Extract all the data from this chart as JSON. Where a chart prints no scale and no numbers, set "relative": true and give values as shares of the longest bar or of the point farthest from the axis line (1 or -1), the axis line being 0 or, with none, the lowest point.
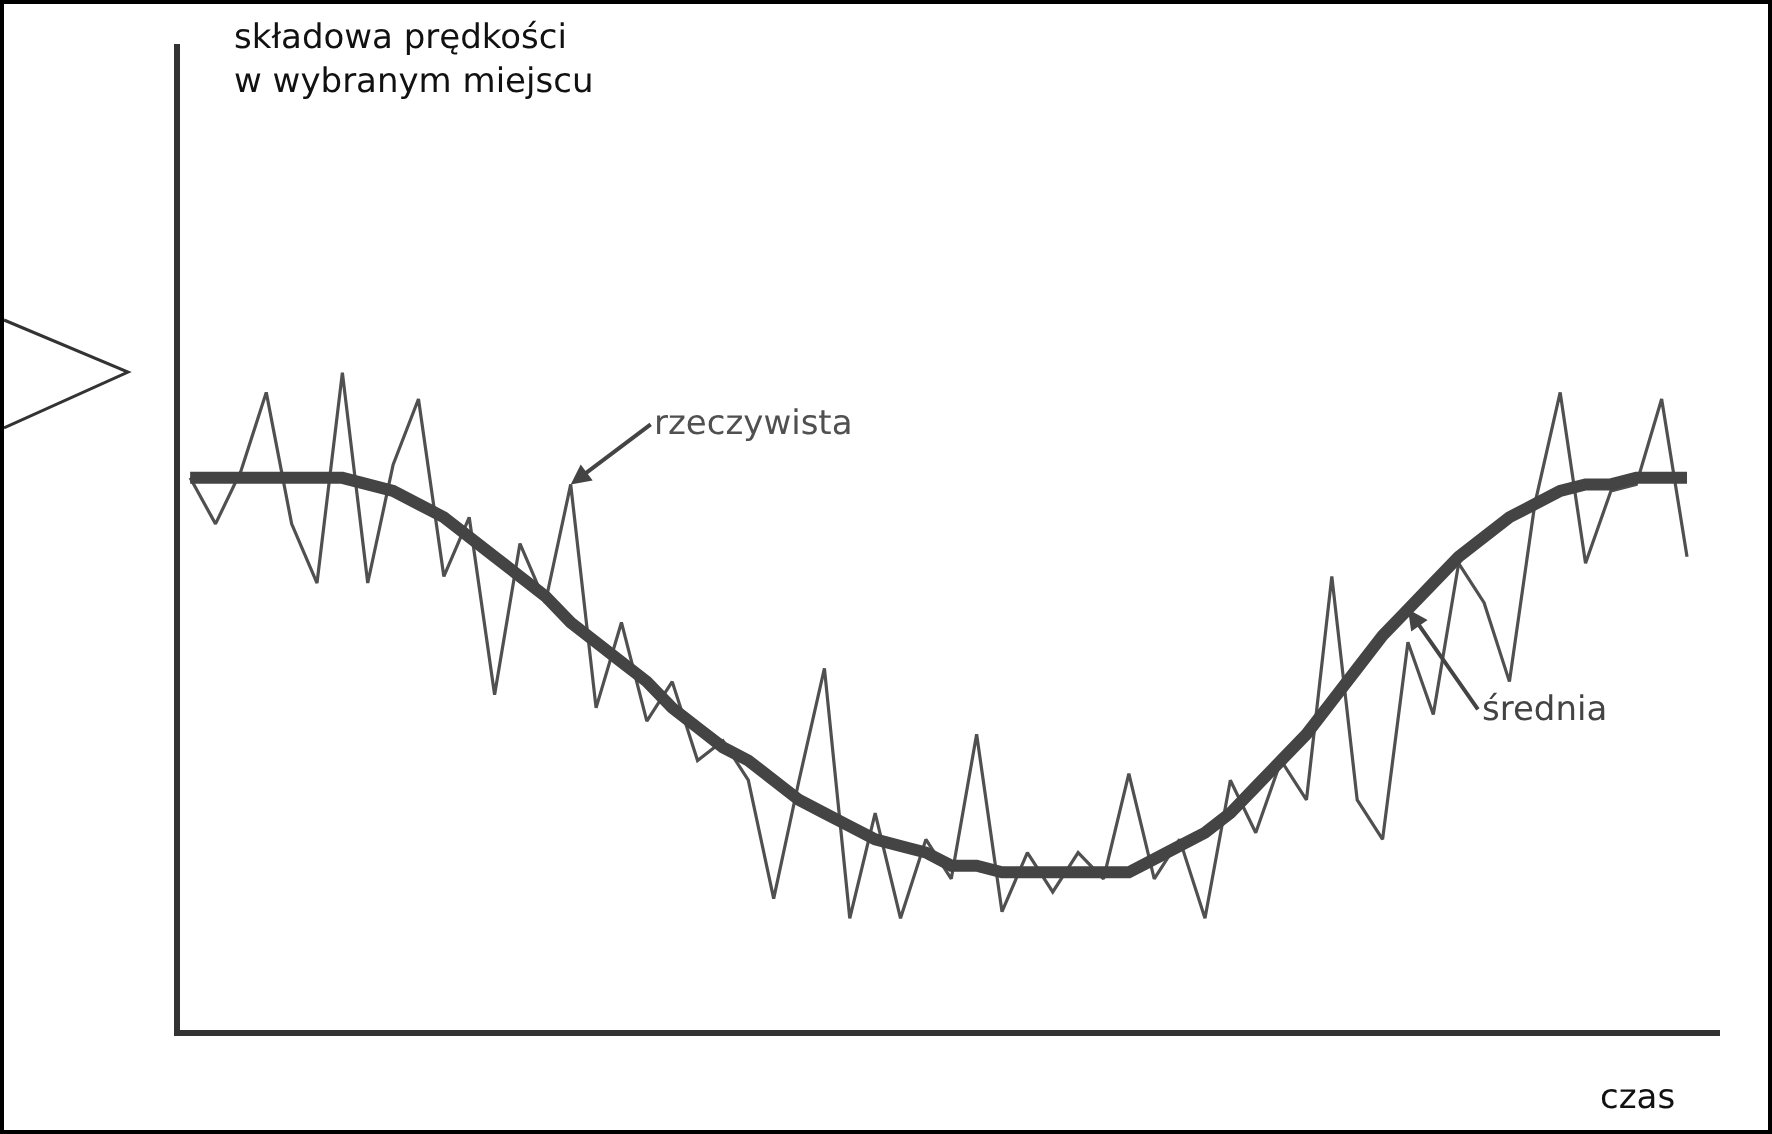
{
  "chart_data": {
    "type": "line",
    "relative": true,
    "legend": false,
    "marker": "none",
    "annotations": [
      "składowa prędkości w wybranym miejscu"
    ],
    "xlabel": "czas",
    "categories": [
      null,
      null,
      null,
      null,
      null,
      null,
      null,
      null,
      null,
      null,
      null,
      null,
      null,
      null,
      null,
      null,
      null,
      null,
      null,
      null,
      null,
      null,
      null,
      null,
      null,
      null,
      null,
      null,
      null,
      null,
      null,
      null,
      null,
      null,
      null,
      null,
      null,
      null,
      null,
      null,
      null,
      null,
      null,
      null,
      null,
      null,
      null,
      null,
      null,
      null,
      null,
      null,
      null,
      null,
      null,
      null,
      null,
      null,
      null,
      null
    ],
    "series": [
      {
        "name": "rzeczywista",
        "color": "#505050",
        "values": [
          0.84,
          0.77,
          0.85,
          0.97,
          0.77,
          0.68,
          1.0,
          0.68,
          0.86,
          0.96,
          0.69,
          0.78,
          0.51,
          0.74,
          0.65,
          0.83,
          0.49,
          0.62,
          0.47,
          0.53,
          0.41,
          0.44,
          0.38,
          0.2,
          0.38,
          0.55,
          0.17,
          0.33,
          0.17,
          0.29,
          0.23,
          0.45,
          0.18,
          0.27,
          0.21,
          0.27,
          0.23,
          0.39,
          0.23,
          0.29,
          0.17,
          0.38,
          0.3,
          0.41,
          0.35,
          0.69,
          0.35,
          0.29,
          0.59,
          0.48,
          0.71,
          0.65,
          0.53,
          0.8,
          0.97,
          0.71,
          0.82,
          0.83,
          0.96,
          0.72
        ]
      },
      {
        "name": "średnia",
        "color": "#444444",
        "values": [
          0.84,
          0.84,
          0.84,
          0.84,
          0.84,
          0.84,
          0.84,
          0.83,
          0.82,
          0.8,
          0.78,
          0.75,
          0.72,
          0.69,
          0.66,
          0.62,
          0.59,
          0.56,
          0.53,
          0.49,
          0.46,
          0.43,
          0.41,
          0.38,
          0.35,
          0.33,
          0.31,
          0.29,
          0.28,
          0.27,
          0.25,
          0.25,
          0.24,
          0.24,
          0.24,
          0.24,
          0.24,
          0.24,
          0.26,
          0.28,
          0.3,
          0.33,
          0.37,
          0.41,
          0.45,
          0.5,
          0.55,
          0.6,
          0.64,
          0.68,
          0.72,
          0.75,
          0.78,
          0.8,
          0.82,
          0.83,
          0.83,
          0.84,
          0.84,
          0.84
        ]
      }
    ]
  }
}
